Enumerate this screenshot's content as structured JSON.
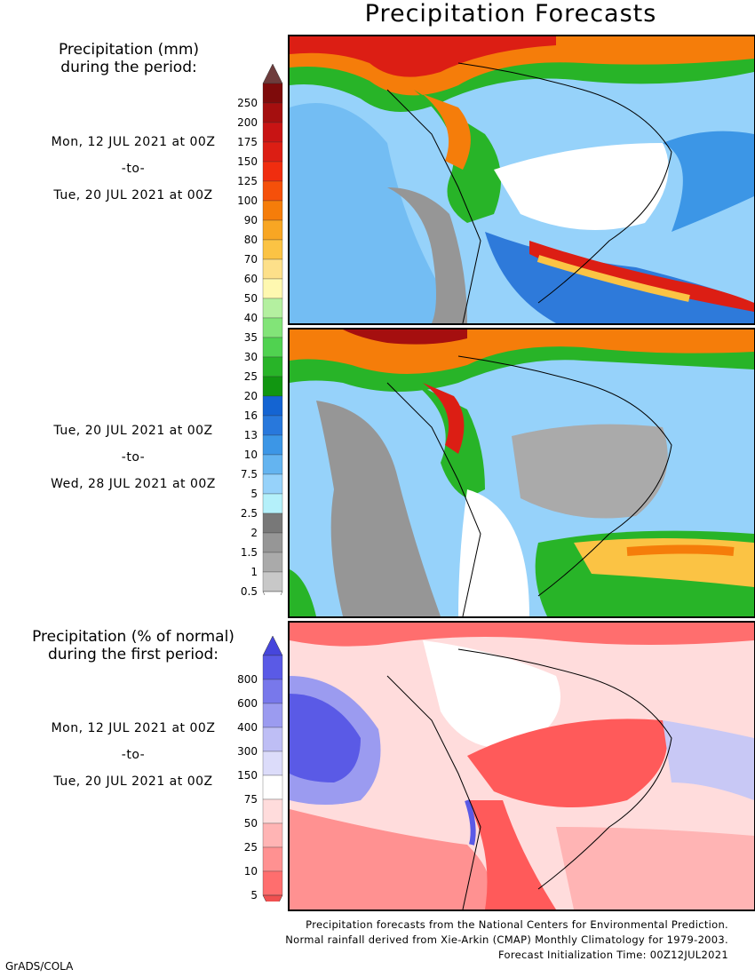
{
  "title": "Precipitation Forecasts",
  "legend_mm": {
    "header_line1": "Precipitation (mm)",
    "header_line2": "during the period:",
    "levels": [
      "250",
      "200",
      "175",
      "150",
      "125",
      "100",
      "90",
      "80",
      "70",
      "60",
      "50",
      "40",
      "35",
      "30",
      "25",
      "20",
      "16",
      "13",
      "10",
      "7.5",
      "5",
      "2.5",
      "2",
      "1.5",
      "1",
      "0.5"
    ],
    "colors": [
      "#7e0b0b",
      "#a50f0f",
      "#c81414",
      "#dc1e14",
      "#f02d0f",
      "#f5500a",
      "#f57d0a",
      "#f8a623",
      "#fbc344",
      "#fde08a",
      "#fef8b0",
      "#b4f0a0",
      "#82e478",
      "#50d250",
      "#28b428",
      "#119611",
      "#1464d2",
      "#2878dc",
      "#3c96e6",
      "#64b4f0",
      "#96d2fa",
      "#b4f0fa",
      "#787878",
      "#969696",
      "#aaaaaa",
      "#c8c8c8"
    ],
    "top_cap": "#6e3c3c"
  },
  "legend_pct": {
    "header_line1": "Precipitation (% of normal)",
    "header_line2": "during the first period:",
    "levels": [
      "800",
      "600",
      "400",
      "300",
      "150",
      "75",
      "50",
      "25",
      "10",
      "5"
    ],
    "colors": [
      "#5a5ae6",
      "#7878eb",
      "#9b9bf0",
      "#bebef5",
      "#dcdcfa",
      "#ffffff",
      "#ffdcdc",
      "#ffb4b4",
      "#ff9191",
      "#ff6e6e"
    ],
    "top_cap": "#4646dc",
    "bottom_cap": "#f05050"
  },
  "periods": [
    {
      "from": "Mon, 12 JUL 2021 at 00Z",
      "to": "-to-",
      "until": "Tue, 20 JUL 2021 at 00Z"
    },
    {
      "from": "Tue, 20 JUL 2021 at 00Z",
      "to": "-to-",
      "until": "Wed, 28 JUL 2021 at 00Z"
    },
    {
      "from": "Mon, 12 JUL 2021 at 00Z",
      "to": "-to-",
      "until": "Tue, 20 JUL 2021 at 00Z"
    }
  ],
  "footer": {
    "line1": "Precipitation forecasts from the National Centers for Environmental Prediction.",
    "line2": "Normal rainfall derived from Xie-Arkin (CMAP) Monthly Climatology for 1979-2003.",
    "line3": "Forecast Initialization Time: 00Z12JUL2021"
  },
  "credit": "GrADS/COLA",
  "map_colors": {
    "ocean_light": "#b4f0fa",
    "ocean_mid": "#96d2fa",
    "blue": "#3c96e6",
    "deep_blue": "#1464d2",
    "green": "#28b428",
    "light_green": "#82e478",
    "yellow": "#fbc344",
    "orange": "#f57d0a",
    "red": "#dc1e14",
    "grey": "#969696",
    "pct_red": "#ff5a5a",
    "pct_pink": "#ffb4b4",
    "pct_blue": "#5a5ae6",
    "pct_lav": "#c8c8f5"
  }
}
